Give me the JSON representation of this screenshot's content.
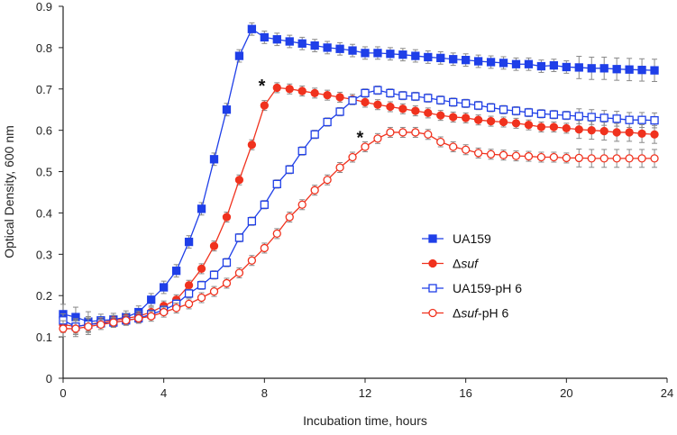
{
  "chart_data": {
    "type": "line",
    "title": "",
    "xlabel": "Incubation time, hours",
    "ylabel": "Optical Density, 600 nm",
    "xlim": [
      0,
      24
    ],
    "ylim": [
      0,
      0.9
    ],
    "xticks": [
      "0",
      "4",
      "8",
      "12",
      "16",
      "20",
      "24"
    ],
    "yticks": [
      "0",
      "0.1",
      "0.2",
      "0.3",
      "0.4",
      "0.5",
      "0.6",
      "0.7",
      "0.8",
      "0.9"
    ],
    "grid": false,
    "legend_position": "right-middle",
    "x": [
      0,
      0.5,
      1,
      1.5,
      2,
      2.5,
      3,
      3.5,
      4,
      4.5,
      5,
      5.5,
      6,
      6.5,
      7,
      7.5,
      8,
      8.5,
      9,
      9.5,
      10,
      10.5,
      11,
      11.5,
      12,
      12.5,
      13,
      13.5,
      14,
      14.5,
      15,
      15.5,
      16,
      16.5,
      17,
      17.5,
      18,
      18.5,
      19,
      19.5,
      20,
      20.5,
      21,
      21.5,
      22,
      22.5,
      23,
      23.5
    ],
    "series": [
      {
        "name": "UA159",
        "italic_part": "",
        "color": "#1f3fe8",
        "marker": "square",
        "filled": true,
        "typical_error": 0.015,
        "values": [
          0.155,
          0.148,
          0.137,
          0.14,
          0.142,
          0.148,
          0.16,
          0.19,
          0.22,
          0.26,
          0.33,
          0.41,
          0.53,
          0.65,
          0.78,
          0.845,
          0.825,
          0.82,
          0.815,
          0.81,
          0.805,
          0.8,
          0.797,
          0.793,
          0.787,
          0.787,
          0.785,
          0.783,
          0.78,
          0.777,
          0.775,
          0.772,
          0.77,
          0.767,
          0.765,
          0.763,
          0.76,
          0.76,
          0.755,
          0.757,
          0.753,
          0.752,
          0.75,
          0.75,
          0.748,
          0.747,
          0.746,
          0.745
        ]
      },
      {
        "name": "Δsuf",
        "italic_part": "suf",
        "color": "#f0321e",
        "marker": "circle",
        "filled": true,
        "typical_error": 0.012,
        "values": [
          0.13,
          0.125,
          0.13,
          0.135,
          0.14,
          0.145,
          0.15,
          0.16,
          0.175,
          0.19,
          0.225,
          0.265,
          0.32,
          0.39,
          0.48,
          0.565,
          0.66,
          0.703,
          0.7,
          0.695,
          0.69,
          0.685,
          0.68,
          0.675,
          0.668,
          0.662,
          0.657,
          0.652,
          0.647,
          0.642,
          0.636,
          0.632,
          0.63,
          0.625,
          0.622,
          0.62,
          0.617,
          0.613,
          0.608,
          0.608,
          0.605,
          0.602,
          0.6,
          0.598,
          0.595,
          0.595,
          0.592,
          0.59
        ]
      },
      {
        "name": "UA159-pH 6",
        "italic_part": "",
        "color": "#1f3fe8",
        "marker": "square",
        "filled": false,
        "typical_error": 0.01,
        "values": [
          0.14,
          0.125,
          0.13,
          0.133,
          0.135,
          0.14,
          0.145,
          0.155,
          0.165,
          0.18,
          0.205,
          0.225,
          0.25,
          0.28,
          0.34,
          0.38,
          0.42,
          0.47,
          0.505,
          0.55,
          0.59,
          0.62,
          0.645,
          0.672,
          0.69,
          0.697,
          0.69,
          0.684,
          0.682,
          0.678,
          0.673,
          0.668,
          0.665,
          0.66,
          0.655,
          0.65,
          0.647,
          0.643,
          0.64,
          0.638,
          0.636,
          0.634,
          0.632,
          0.63,
          0.628,
          0.625,
          0.625,
          0.624
        ]
      },
      {
        "name": "Δsuf-pH 6",
        "italic_part": "suf",
        "color": "#f0321e",
        "marker": "circle",
        "filled": false,
        "typical_error": 0.012,
        "values": [
          0.12,
          0.12,
          0.125,
          0.13,
          0.135,
          0.14,
          0.145,
          0.15,
          0.16,
          0.17,
          0.18,
          0.195,
          0.21,
          0.23,
          0.255,
          0.285,
          0.315,
          0.35,
          0.39,
          0.42,
          0.455,
          0.48,
          0.51,
          0.535,
          0.56,
          0.58,
          0.595,
          0.595,
          0.595,
          0.59,
          0.572,
          0.56,
          0.553,
          0.545,
          0.542,
          0.54,
          0.538,
          0.537,
          0.535,
          0.535,
          0.533,
          0.533,
          0.532,
          0.532,
          0.532,
          0.532,
          0.532,
          0.532
        ]
      }
    ],
    "annotations": [
      {
        "text": "*",
        "x": 7.9,
        "y": 0.71
      },
      {
        "text": "*",
        "x": 11.8,
        "y": 0.585
      }
    ]
  }
}
